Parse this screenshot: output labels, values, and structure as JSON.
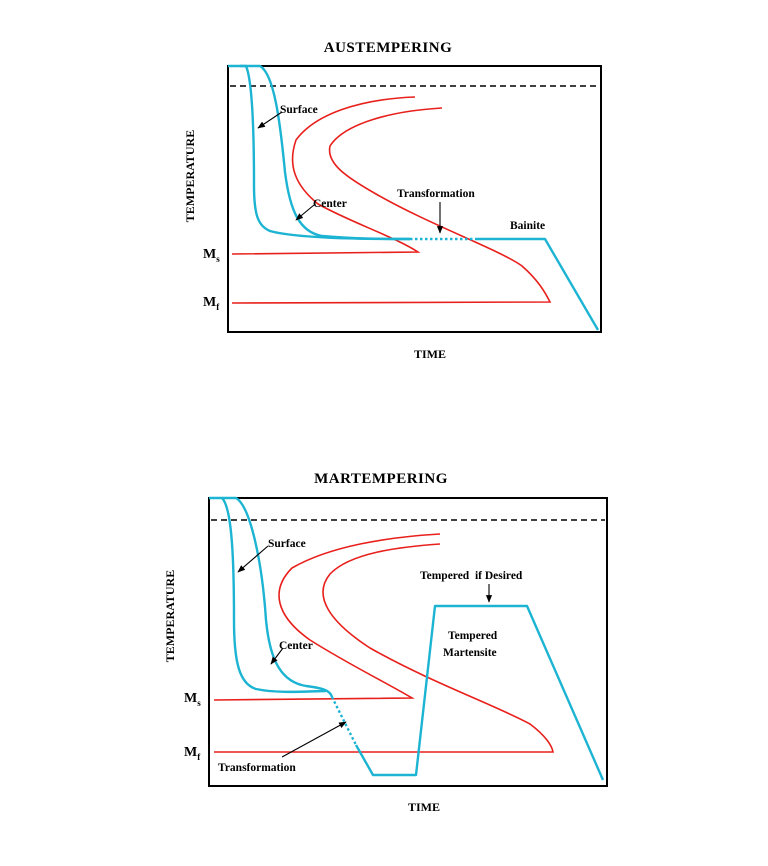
{
  "colors": {
    "tt_curves": "#e8201c",
    "cooling_curves": "#1cb4d2",
    "frame": "#000000"
  },
  "austempering": {
    "title": "AUSTEMPERING",
    "y_axis": "TEMPERATURE",
    "x_axis": "TIME",
    "ms_main": "M",
    "ms_sub": "s",
    "mf_main": "M",
    "mf_sub": "f",
    "surface": "Surface",
    "center": "Center",
    "transformation": "Transformation",
    "bainite": "Bainite"
  },
  "martempering": {
    "title": "MARTEMPERING",
    "y_axis": "TEMPERATURE",
    "x_axis": "TIME",
    "ms_main": "M",
    "ms_sub": "s",
    "mf_main": "M",
    "mf_sub": "f",
    "surface": "Surface",
    "center": "Center",
    "transformation": "Transformation",
    "tempered_if_desired": "Tempered  if Desired",
    "tempered_martensite_1": "Tempered",
    "tempered_martensite_2": "Martensite"
  }
}
